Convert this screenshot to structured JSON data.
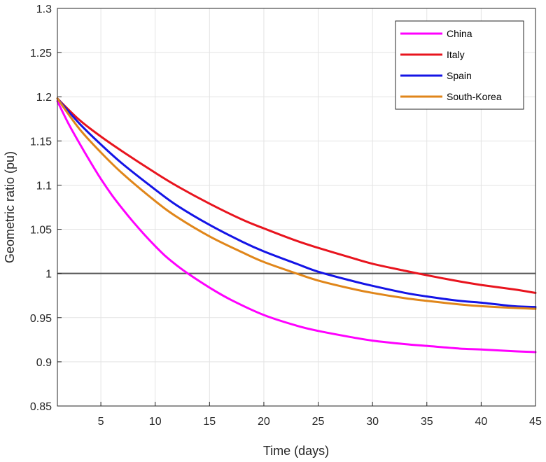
{
  "chart_data": {
    "type": "line",
    "title": "",
    "xlabel": "Time (days)",
    "ylabel": "Geometric ratio (pu)",
    "xlim": [
      1,
      45
    ],
    "ylim": [
      0.85,
      1.3
    ],
    "xticks": [
      5,
      10,
      15,
      20,
      25,
      30,
      35,
      40,
      45
    ],
    "yticks": [
      0.85,
      0.9,
      0.95,
      1,
      1.05,
      1.1,
      1.15,
      1.2,
      1.25,
      1.3
    ],
    "xtick_labels": [
      "5",
      "10",
      "15",
      "20",
      "25",
      "30",
      "35",
      "40",
      "45"
    ],
    "ytick_labels": [
      "0.85",
      "0.9",
      "0.95",
      "1",
      "1.05",
      "1.1",
      "1.15",
      "1.2",
      "1.25",
      "1.3"
    ],
    "grid": true,
    "legend_position": "top-right",
    "reference_line": {
      "y": 1,
      "color": "#555555"
    },
    "series": [
      {
        "name": "China",
        "color": "#ff00ff",
        "x": [
          1,
          2,
          3,
          4,
          5,
          6,
          7,
          8,
          9,
          10,
          11,
          12,
          13,
          15,
          17,
          20,
          23,
          25,
          28,
          30,
          33,
          35,
          38,
          40,
          43,
          45
        ],
        "y": [
          1.195,
          1.17,
          1.148,
          1.127,
          1.107,
          1.089,
          1.073,
          1.058,
          1.044,
          1.031,
          1.019,
          1.009,
          1.0,
          0.984,
          0.97,
          0.953,
          0.941,
          0.935,
          0.928,
          0.924,
          0.92,
          0.918,
          0.915,
          0.914,
          0.912,
          0.911
        ]
      },
      {
        "name": "Italy",
        "color": "#e8141e",
        "x": [
          1,
          3,
          5,
          7,
          10,
          12,
          15,
          18,
          20,
          23,
          25,
          28,
          30,
          33,
          35,
          38,
          40,
          43,
          45
        ],
        "y": [
          1.198,
          1.174,
          1.155,
          1.138,
          1.114,
          1.099,
          1.079,
          1.061,
          1.051,
          1.037,
          1.029,
          1.018,
          1.011,
          1.003,
          0.998,
          0.991,
          0.987,
          0.982,
          0.978
        ]
      },
      {
        "name": "Spain",
        "color": "#1414e6",
        "x": [
          1,
          3,
          5,
          7,
          10,
          12,
          15,
          18,
          20,
          23,
          25,
          28,
          30,
          33,
          35,
          38,
          40,
          43,
          45
        ],
        "y": [
          1.198,
          1.17,
          1.146,
          1.124,
          1.095,
          1.077,
          1.055,
          1.036,
          1.025,
          1.011,
          1.002,
          0.992,
          0.986,
          0.978,
          0.974,
          0.969,
          0.967,
          0.963,
          0.962
        ]
      },
      {
        "name": "South-Korea",
        "color": "#e0861a",
        "x": [
          1,
          3,
          5,
          7,
          10,
          12,
          15,
          18,
          20,
          23,
          25,
          28,
          30,
          33,
          35,
          38,
          40,
          43,
          45
        ],
        "y": [
          1.198,
          1.164,
          1.137,
          1.113,
          1.082,
          1.064,
          1.042,
          1.024,
          1.013,
          1.0,
          0.992,
          0.983,
          0.978,
          0.972,
          0.969,
          0.965,
          0.963,
          0.961,
          0.96
        ]
      }
    ]
  }
}
